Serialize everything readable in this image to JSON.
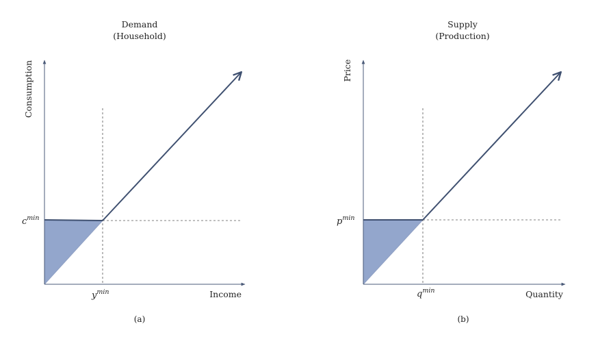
{
  "panel_a": {
    "title_line1": "Demand",
    "title_line2": "(Household)",
    "x_label": "Income",
    "y_label": "Consumption",
    "y_marker_base": "c",
    "y_marker_sup": "min",
    "x_marker_base": "y",
    "x_marker_sup": "min",
    "caption": "(a)"
  },
  "panel_b": {
    "title_line1": "Supply",
    "title_line2": "(Production)",
    "x_label": "Quantity",
    "y_label": "Price",
    "y_marker_base": "p",
    "y_marker_sup": "min",
    "x_marker_base": "q",
    "x_marker_sup": "min",
    "caption": "(b)"
  },
  "colors": {
    "axis": "#4a5a78",
    "curve": "#3f5070",
    "shade": "#93a6cc"
  }
}
